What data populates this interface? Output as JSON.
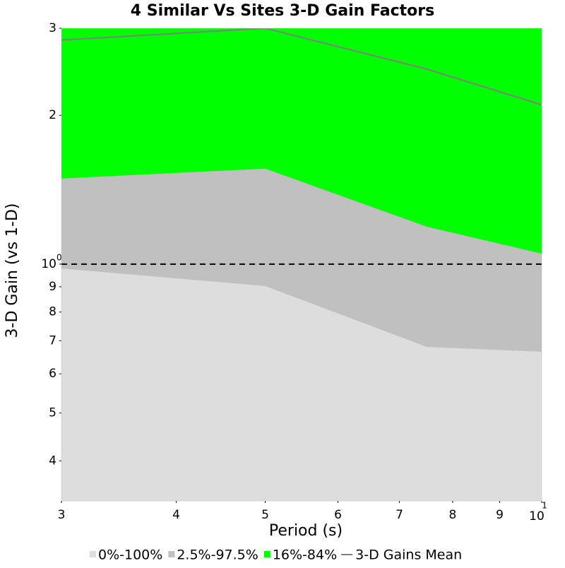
{
  "chart_data": {
    "type": "band",
    "title": "4 Similar Vs Sites 3-D Gain Factors",
    "x_label": "Period (s)",
    "y_label": "3-D Gain (vs 1-D)",
    "x": [
      3,
      5,
      7.5,
      10
    ],
    "series": [
      {
        "name": "0%-100%",
        "color": "#dddddd"
      },
      {
        "name": "2.5%-97.5%",
        "color": "#c0c0c0",
        "lower": [
          0.98,
          0.903,
          0.68,
          0.665
        ]
      },
      {
        "name": "16%-84%",
        "color": "#00ff00",
        "lower": [
          1.49,
          1.56,
          1.19,
          1.05
        ]
      },
      {
        "name": "3-D Gains Mean",
        "color": "#808080",
        "values": [
          2.84,
          3.0,
          2.48,
          2.1
        ]
      }
    ],
    "reference_line": 1,
    "xlim": [
      3,
      10
    ],
    "ylim": [
      0.332,
      3
    ],
    "xscale": "log",
    "yscale": "log",
    "xticks": [
      3,
      4,
      5,
      6,
      7,
      8,
      9,
      {
        "value": 10,
        "label": "10",
        "exponent": "1"
      }
    ],
    "yticks": [
      {
        "value": 0.4,
        "label": "4"
      },
      {
        "value": 0.5,
        "label": "5"
      },
      {
        "value": 0.6,
        "label": "6"
      },
      {
        "value": 0.7,
        "label": "7"
      },
      {
        "value": 0.8,
        "label": "8"
      },
      {
        "value": 0.9,
        "label": "9"
      },
      {
        "value": 1,
        "label": "10",
        "exponent": "0"
      },
      2,
      3
    ]
  }
}
